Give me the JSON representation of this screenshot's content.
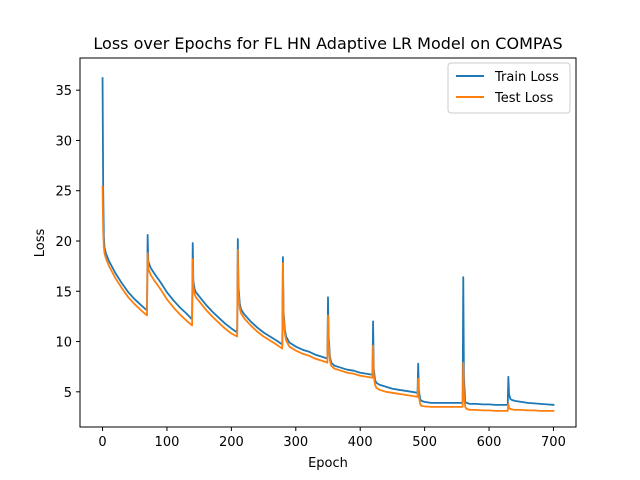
{
  "chart_data": {
    "type": "line",
    "title": "Loss over Epochs for FL HN Adaptive LR Model on COMPAS",
    "xlabel": "Epoch",
    "ylabel": "Loss",
    "xlim": [
      -35,
      735
    ],
    "ylim": [
      1.5,
      38.2
    ],
    "xticks": [
      0,
      100,
      200,
      300,
      400,
      500,
      600,
      700
    ],
    "yticks": [
      5,
      10,
      15,
      20,
      25,
      30,
      35
    ],
    "grid": false,
    "legend_position": "top-right",
    "series": [
      {
        "name": "Train Loss",
        "color": "#1f77b4",
        "x": [
          0,
          1,
          2,
          3,
          5,
          10,
          20,
          30,
          40,
          50,
          60,
          69,
          70,
          71,
          73,
          75,
          80,
          90,
          100,
          110,
          120,
          130,
          139,
          140,
          141,
          143,
          145,
          150,
          160,
          170,
          180,
          190,
          200,
          209,
          210,
          211,
          213,
          215,
          220,
          230,
          240,
          250,
          260,
          270,
          279,
          280,
          281,
          283,
          285,
          290,
          300,
          310,
          320,
          330,
          340,
          349,
          350,
          351,
          353,
          355,
          360,
          370,
          380,
          390,
          400,
          410,
          419,
          420,
          421,
          423,
          425,
          430,
          440,
          450,
          460,
          470,
          480,
          489,
          490,
          491,
          493,
          495,
          500,
          510,
          520,
          530,
          540,
          550,
          559,
          560,
          561,
          563,
          565,
          570,
          580,
          590,
          600,
          610,
          620,
          629,
          630,
          631,
          633,
          635,
          640,
          650,
          660,
          670,
          680,
          690,
          700
        ],
        "y": [
          36.2,
          25.0,
          20.5,
          19.4,
          18.8,
          18.0,
          16.8,
          15.8,
          14.9,
          14.2,
          13.6,
          13.1,
          20.6,
          18.0,
          17.6,
          17.3,
          16.8,
          15.9,
          14.9,
          14.1,
          13.4,
          12.8,
          12.2,
          19.8,
          16.0,
          15.2,
          14.9,
          14.5,
          13.7,
          13.0,
          12.4,
          11.8,
          11.3,
          10.9,
          20.2,
          15.5,
          13.8,
          13.2,
          12.7,
          12.0,
          11.4,
          10.9,
          10.5,
          10.1,
          9.7,
          18.4,
          13.0,
          11.2,
          10.5,
          9.9,
          9.5,
          9.2,
          9.0,
          8.7,
          8.5,
          8.3,
          14.4,
          10.5,
          8.5,
          7.9,
          7.6,
          7.4,
          7.2,
          7.1,
          6.9,
          6.8,
          6.7,
          12.0,
          7.3,
          6.2,
          5.9,
          5.7,
          5.5,
          5.3,
          5.2,
          5.1,
          5.0,
          4.9,
          7.8,
          5.2,
          4.3,
          4.1,
          4.0,
          3.9,
          3.9,
          3.9,
          3.9,
          3.9,
          3.9,
          16.4,
          6.5,
          4.0,
          3.9,
          3.8,
          3.8,
          3.75,
          3.75,
          3.7,
          3.7,
          3.7,
          6.5,
          4.8,
          4.3,
          4.2,
          4.1,
          4.0,
          3.9,
          3.85,
          3.8,
          3.75,
          3.7
        ]
      },
      {
        "name": "Test Loss",
        "color": "#ff7f0e",
        "x": [
          0,
          1,
          2,
          3,
          5,
          10,
          20,
          30,
          40,
          50,
          60,
          69,
          70,
          71,
          73,
          75,
          80,
          90,
          100,
          110,
          120,
          130,
          139,
          140,
          141,
          143,
          145,
          150,
          160,
          170,
          180,
          190,
          200,
          209,
          210,
          211,
          213,
          215,
          220,
          230,
          240,
          250,
          260,
          270,
          279,
          280,
          281,
          283,
          285,
          290,
          300,
          310,
          320,
          330,
          340,
          349,
          350,
          351,
          353,
          355,
          360,
          370,
          380,
          390,
          400,
          410,
          419,
          420,
          421,
          423,
          425,
          430,
          440,
          450,
          460,
          470,
          480,
          489,
          490,
          491,
          493,
          495,
          500,
          510,
          520,
          530,
          540,
          550,
          559,
          560,
          561,
          563,
          565,
          570,
          580,
          590,
          600,
          610,
          620,
          629,
          630,
          631,
          633,
          635,
          640,
          650,
          660,
          670,
          680,
          690,
          700
        ],
        "y": [
          25.4,
          21.0,
          19.4,
          18.8,
          18.3,
          17.5,
          16.3,
          15.3,
          14.4,
          13.7,
          13.1,
          12.6,
          18.8,
          17.3,
          16.9,
          16.6,
          16.1,
          15.2,
          14.2,
          13.4,
          12.7,
          12.1,
          11.6,
          18.2,
          15.4,
          14.7,
          14.4,
          14.0,
          13.2,
          12.5,
          11.9,
          11.3,
          10.8,
          10.5,
          19.1,
          14.8,
          13.3,
          12.8,
          12.3,
          11.6,
          11.0,
          10.5,
          10.1,
          9.7,
          9.3,
          17.8,
          12.5,
          10.8,
          10.1,
          9.5,
          9.1,
          8.8,
          8.6,
          8.3,
          8.1,
          7.9,
          12.6,
          9.8,
          8.1,
          7.6,
          7.3,
          7.1,
          6.9,
          6.8,
          6.6,
          6.5,
          6.4,
          9.6,
          6.6,
          5.7,
          5.4,
          5.2,
          5.0,
          4.9,
          4.8,
          4.7,
          4.6,
          4.5,
          6.3,
          4.6,
          3.8,
          3.6,
          3.55,
          3.5,
          3.5,
          3.5,
          3.5,
          3.5,
          3.5,
          7.9,
          4.8,
          3.5,
          3.3,
          3.2,
          3.2,
          3.15,
          3.15,
          3.1,
          3.1,
          3.1,
          3.8,
          3.4,
          3.3,
          3.25,
          3.2,
          3.2,
          3.15,
          3.15,
          3.1,
          3.1,
          3.1
        ]
      }
    ]
  }
}
